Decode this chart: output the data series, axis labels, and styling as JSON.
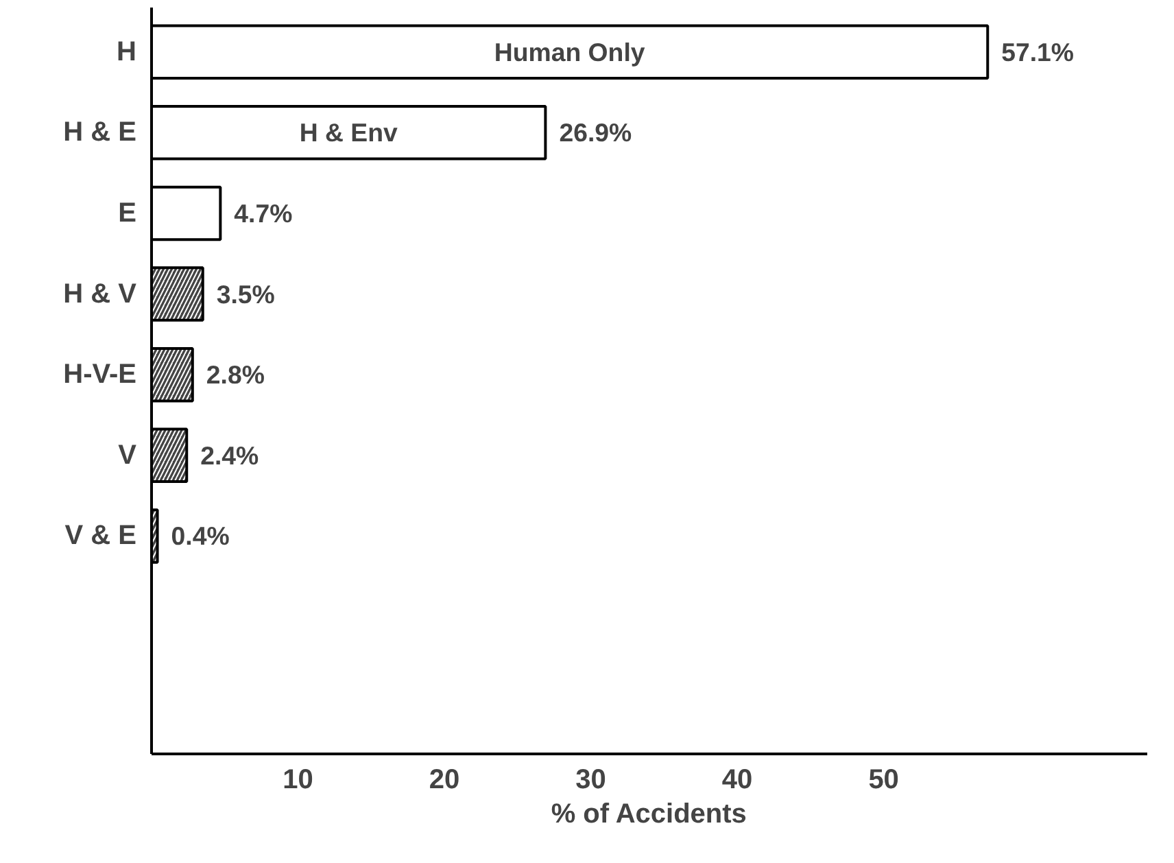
{
  "chart_data": {
    "type": "bar",
    "orientation": "horizontal",
    "categories": [
      "H",
      "H & E",
      "E",
      "H & V",
      "H-V-E",
      "V",
      "V & E"
    ],
    "values": [
      57.1,
      26.9,
      4.7,
      3.5,
      2.8,
      2.4,
      0.4
    ],
    "value_labels": [
      "57.1%",
      "26.9%",
      "4.7%",
      "3.5%",
      "2.8%",
      "2.4%",
      "0.4%"
    ],
    "colors": [
      "#ffffff",
      "#ffffff",
      "#ffffff",
      "#444444",
      "#444444",
      "#444444",
      "#444444"
    ],
    "xlabel": "% of Accidents",
    "xlim": [
      0,
      68
    ],
    "xticks": [
      10,
      20,
      30,
      40,
      50
    ],
    "annotations": [
      "Human Only",
      "H & Env"
    ],
    "grid": false
  }
}
